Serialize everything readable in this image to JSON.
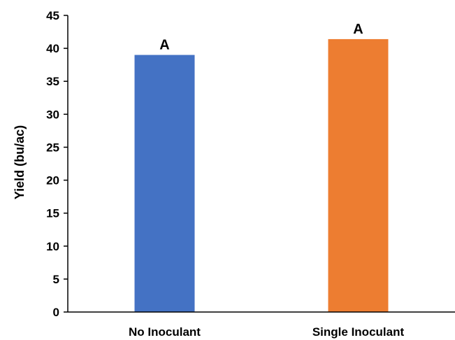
{
  "chart_data": {
    "type": "bar",
    "categories": [
      "No Inoculant",
      "Single Inoculant"
    ],
    "values": [
      39.0,
      41.4
    ],
    "data_labels": [
      "A",
      "A"
    ],
    "colors": [
      "#4472C4",
      "#ED7D31"
    ],
    "title": "",
    "xlabel": "",
    "ylabel": "Yield (bu/ac)",
    "ylim": [
      0,
      45
    ],
    "yticks": [
      0,
      5,
      10,
      15,
      20,
      25,
      30,
      35,
      40,
      45
    ],
    "grid": false,
    "legend": "none"
  }
}
